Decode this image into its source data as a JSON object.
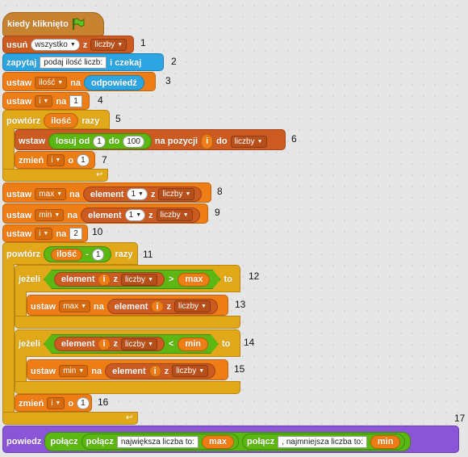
{
  "colors": {
    "event": "#c88330",
    "list": "#cc5b22",
    "sensing": "#2ca5e2",
    "variables": "#ee7d16",
    "control": "#e1a91a",
    "operators": "#5cb712",
    "looks": "#8a55d7"
  },
  "b_hat": {
    "label": "kiedy kliknięto",
    "icon": "green-flag-icon"
  },
  "b1": {
    "kw": "usuń",
    "opt": "wszystko",
    "z": "z",
    "list": "liczby",
    "n": "1"
  },
  "b2": {
    "kw": "zapytaj",
    "text": "podaj ilość liczb:",
    "kw2": "i czekaj",
    "n": "2"
  },
  "b3": {
    "kw": "ustaw",
    "var": "ilość",
    "na": "na",
    "reporter": "odpowiedź",
    "n": "3"
  },
  "b4": {
    "kw": "ustaw",
    "var": "i",
    "na": "na",
    "val": "1",
    "n": "4"
  },
  "b5": {
    "kw": "powtórz",
    "reporter": "ilość",
    "kw2": "razy",
    "n": "5"
  },
  "b6": {
    "kw": "wstaw",
    "losuj": "losuj od",
    "from": "1",
    "do": "do",
    "to": "100",
    "na": "na pozycji",
    "i": "i",
    "do2": "do",
    "list": "liczby",
    "n": "6"
  },
  "b7": {
    "kw": "zmień",
    "var": "i",
    "o": "o",
    "val": "1",
    "n": "7"
  },
  "b8": {
    "kw": "ustaw",
    "var": "max",
    "na": "na",
    "element": "element",
    "idx": "1",
    "z": "z",
    "list": "liczby",
    "n": "8"
  },
  "b9": {
    "kw": "ustaw",
    "var": "min",
    "na": "na",
    "element": "element",
    "idx": "1",
    "z": "z",
    "list": "liczby",
    "n": "9"
  },
  "b10": {
    "kw": "ustaw",
    "var": "i",
    "na": "na",
    "val": "2",
    "n": "10"
  },
  "b11": {
    "kw": "powtórz",
    "reporter": "ilość",
    "minus": "-",
    "val": "1",
    "kw2": "razy",
    "n": "11"
  },
  "b12": {
    "kw": "jeżeli",
    "element": "element",
    "i": "i",
    "z": "z",
    "list": "liczby",
    "op": ">",
    "rhs": "max",
    "to": "to",
    "n": "12"
  },
  "b13": {
    "kw": "ustaw",
    "var": "max",
    "na": "na",
    "element": "element",
    "i": "i",
    "z": "z",
    "list": "liczby",
    "n": "13"
  },
  "b14": {
    "kw": "jeżeli",
    "element": "element",
    "i": "i",
    "z": "z",
    "list": "liczby",
    "op": "<",
    "rhs": "min",
    "to": "to",
    "n": "14"
  },
  "b15": {
    "kw": "ustaw",
    "var": "min",
    "na": "na",
    "element": "element",
    "i": "i",
    "z": "z",
    "list": "liczby",
    "n": "15"
  },
  "b16": {
    "kw": "zmień",
    "var": "i",
    "o": "o",
    "val": "1",
    "n": "16"
  },
  "b17": {
    "kw": "powiedz",
    "join": "połącz",
    "join2": "połącz",
    "text1": "największa liczba to:",
    "max": "max",
    "join3": "połącz",
    "text2": ", najmniejsza liczba to:",
    "min": "min",
    "n": "17"
  }
}
